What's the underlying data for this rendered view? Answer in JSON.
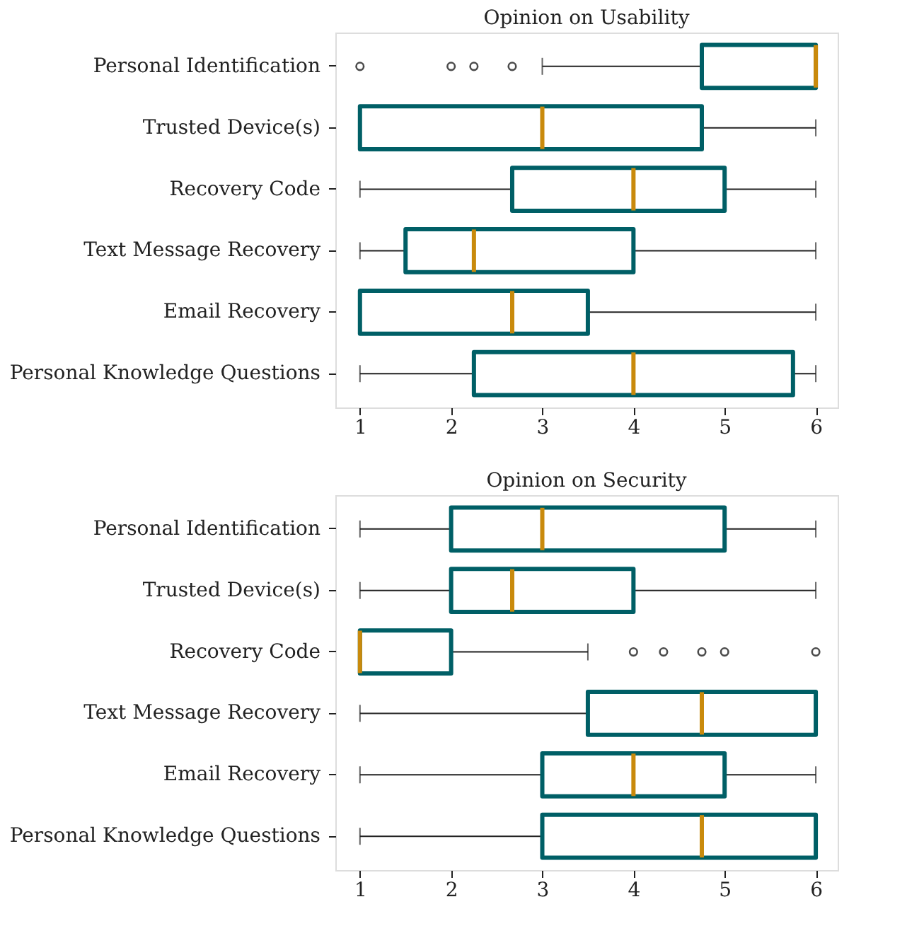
{
  "chart_data": [
    {
      "type": "box",
      "title": "Opinion on Usability",
      "orientation": "horizontal",
      "categories": [
        "Personal Identification",
        "Trusted Device(s)",
        "Recovery Code",
        "Text Message Recovery",
        "Email Recovery",
        "Personal Knowledge Questions"
      ],
      "xlim": [
        0.73,
        6.24
      ],
      "xticks": [
        1,
        2,
        3,
        4,
        5,
        6
      ],
      "grid": false,
      "series": [
        {
          "color": "#005f66",
          "boxes": [
            {
              "low": 3,
              "q1": 4.75,
              "median": 6,
              "q3": 6,
              "high": 6,
              "outliers": [
                1,
                2,
                2.25,
                2.67
              ]
            },
            {
              "low": 1,
              "q1": 1,
              "median": 3,
              "q3": 4.75,
              "high": 6
            },
            {
              "low": 1,
              "q1": 2.67,
              "median": 4,
              "q3": 5,
              "high": 6
            },
            {
              "low": 1,
              "q1": 1.5,
              "median": 2.25,
              "q3": 4,
              "high": 6
            },
            {
              "low": 1,
              "q1": 1,
              "median": 2.67,
              "q3": 3.5,
              "high": 6
            },
            {
              "low": 1,
              "q1": 2.25,
              "median": 4,
              "q3": 5.75,
              "high": 6
            }
          ]
        }
      ]
    },
    {
      "type": "box",
      "title": "Opinion on Security",
      "orientation": "horizontal",
      "categories": [
        "Personal Identification",
        "Trusted Device(s)",
        "Recovery Code",
        "Text Message Recovery",
        "Email Recovery",
        "Personal Knowledge Questions"
      ],
      "xlim": [
        0.73,
        6.24
      ],
      "xticks": [
        1,
        2,
        3,
        4,
        5,
        6
      ],
      "grid": false,
      "series": [
        {
          "color": "#005f66",
          "boxes": [
            {
              "low": 1,
              "q1": 2,
              "median": 3,
              "q3": 5,
              "high": 6
            },
            {
              "low": 1,
              "q1": 2,
              "median": 2.67,
              "q3": 4,
              "high": 6
            },
            {
              "low": 1,
              "q1": 1,
              "median": 1,
              "q3": 2,
              "high": 3.5,
              "outliers": [
                4,
                4.33,
                4.75,
                5,
                6
              ]
            },
            {
              "low": 1,
              "q1": 3.5,
              "median": 4.75,
              "q3": 6,
              "high": 6
            },
            {
              "low": 1,
              "q1": 3,
              "median": 4,
              "q3": 5,
              "high": 6
            },
            {
              "low": 1,
              "q1": 3,
              "median": 4.75,
              "q3": 6,
              "high": 6
            }
          ]
        }
      ]
    }
  ]
}
